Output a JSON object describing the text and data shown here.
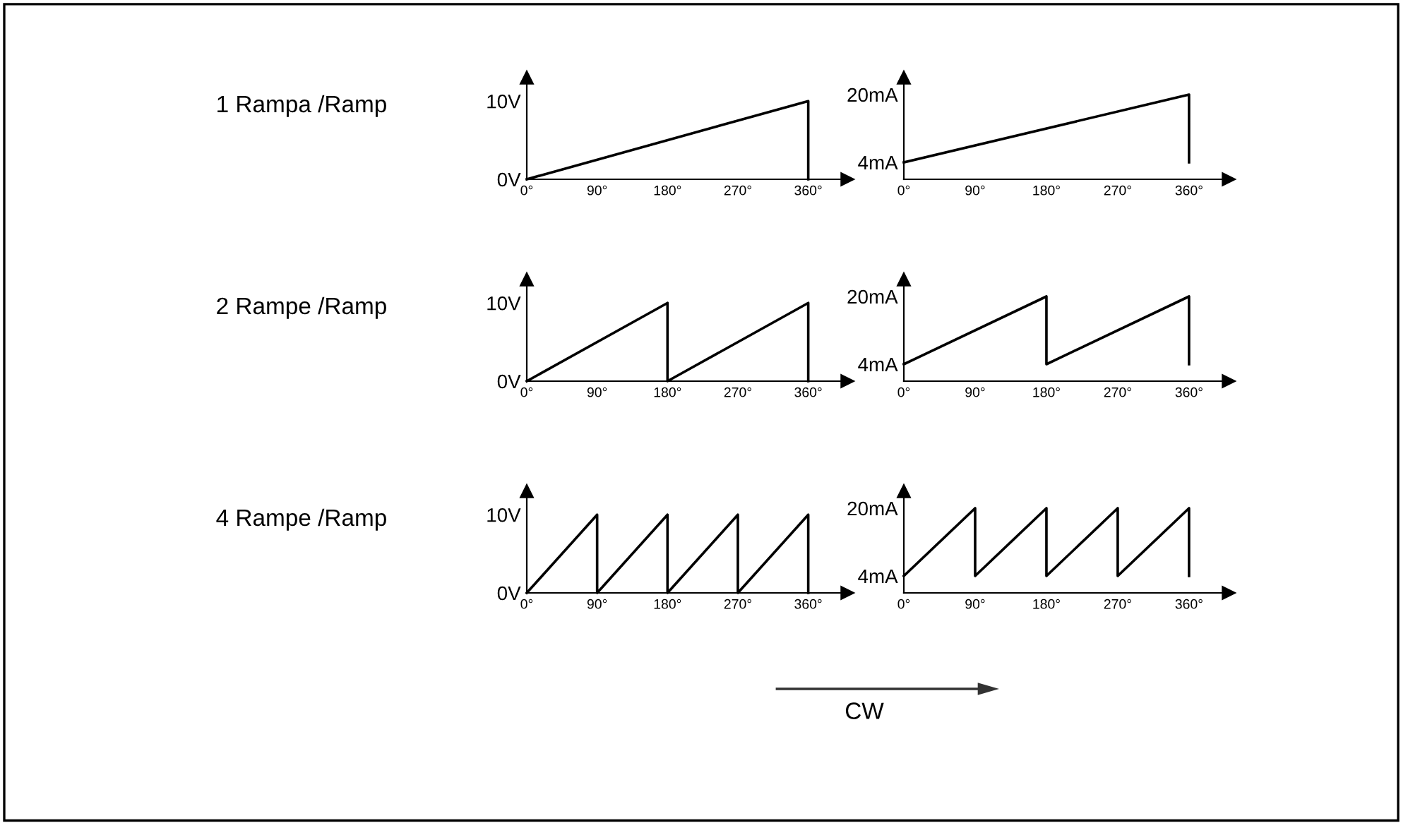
{
  "chart_data": [
    {
      "type": "line",
      "title": "1 Rampa /Ramp",
      "x": [
        0,
        360,
        360
      ],
      "series": [
        {
          "color": "#000000",
          "values": [
            0,
            10,
            0
          ]
        }
      ],
      "xlim": [
        0,
        410
      ],
      "ylim": [
        0,
        13
      ],
      "xticks": [
        {
          "value": 0,
          "label": "0°"
        },
        {
          "value": 90,
          "label": "90°"
        },
        {
          "value": 180,
          "label": "180°"
        },
        {
          "value": 270,
          "label": "270°"
        },
        {
          "value": 360,
          "label": "360°"
        }
      ],
      "yticks": [
        {
          "value": 0,
          "label": "0V"
        },
        {
          "value": 10,
          "label": "10V"
        }
      ],
      "grid": false,
      "legend": false
    },
    {
      "type": "line",
      "x": [
        0,
        360,
        360
      ],
      "series": [
        {
          "color": "#000000",
          "values": [
            4,
            20,
            4
          ]
        }
      ],
      "xlim": [
        0,
        410
      ],
      "ylim": [
        0,
        24
      ],
      "xticks": [
        {
          "value": 0,
          "label": "0°"
        },
        {
          "value": 90,
          "label": "90°"
        },
        {
          "value": 180,
          "label": "180°"
        },
        {
          "value": 270,
          "label": "270°"
        },
        {
          "value": 360,
          "label": "360°"
        }
      ],
      "yticks": [
        {
          "value": 4,
          "label": "4mA"
        },
        {
          "value": 20,
          "label": "20mA"
        }
      ],
      "grid": false,
      "legend": false
    },
    {
      "type": "line",
      "title": "2 Rampe /Ramp",
      "x": [
        0,
        180,
        180,
        360,
        360
      ],
      "series": [
        {
          "color": "#000000",
          "values": [
            0,
            10,
            0,
            10,
            0
          ]
        }
      ],
      "xlim": [
        0,
        410
      ],
      "ylim": [
        0,
        13
      ],
      "xticks": [
        {
          "value": 0,
          "label": "0°"
        },
        {
          "value": 90,
          "label": "90°"
        },
        {
          "value": 180,
          "label": "180°"
        },
        {
          "value": 270,
          "label": "270°"
        },
        {
          "value": 360,
          "label": "360°"
        }
      ],
      "yticks": [
        {
          "value": 0,
          "label": "0V"
        },
        {
          "value": 10,
          "label": "10V"
        }
      ],
      "grid": false,
      "legend": false
    },
    {
      "type": "line",
      "x": [
        0,
        180,
        180,
        360,
        360
      ],
      "series": [
        {
          "color": "#000000",
          "values": [
            4,
            20,
            4,
            20,
            4
          ]
        }
      ],
      "xlim": [
        0,
        410
      ],
      "ylim": [
        0,
        24
      ],
      "xticks": [
        {
          "value": 0,
          "label": "0°"
        },
        {
          "value": 90,
          "label": "90°"
        },
        {
          "value": 180,
          "label": "180°"
        },
        {
          "value": 270,
          "label": "270°"
        },
        {
          "value": 360,
          "label": "360°"
        }
      ],
      "yticks": [
        {
          "value": 4,
          "label": "4mA"
        },
        {
          "value": 20,
          "label": "20mA"
        }
      ],
      "grid": false,
      "legend": false
    },
    {
      "type": "line",
      "title": "4 Rampe /Ramp",
      "x": [
        0,
        90,
        90,
        180,
        180,
        270,
        270,
        360,
        360
      ],
      "series": [
        {
          "color": "#000000",
          "values": [
            0,
            10,
            0,
            10,
            0,
            10,
            0,
            10,
            0
          ]
        }
      ],
      "xlim": [
        0,
        410
      ],
      "ylim": [
        0,
        13
      ],
      "xticks": [
        {
          "value": 0,
          "label": "0°"
        },
        {
          "value": 90,
          "label": "90°"
        },
        {
          "value": 180,
          "label": "180°"
        },
        {
          "value": 270,
          "label": "270°"
        },
        {
          "value": 360,
          "label": "360°"
        }
      ],
      "yticks": [
        {
          "value": 0,
          "label": "0V"
        },
        {
          "value": 10,
          "label": "10V"
        }
      ],
      "grid": false,
      "legend": false
    },
    {
      "type": "line",
      "x": [
        0,
        90,
        90,
        180,
        180,
        270,
        270,
        360,
        360
      ],
      "series": [
        {
          "color": "#000000",
          "values": [
            4,
            20,
            4,
            20,
            4,
            20,
            4,
            20,
            4
          ]
        }
      ],
      "xlim": [
        0,
        410
      ],
      "ylim": [
        0,
        24
      ],
      "xticks": [
        {
          "value": 0,
          "label": "0°"
        },
        {
          "value": 90,
          "label": "90°"
        },
        {
          "value": 180,
          "label": "180°"
        },
        {
          "value": 270,
          "label": "270°"
        },
        {
          "value": 360,
          "label": "360°"
        }
      ],
      "yticks": [
        {
          "value": 4,
          "label": "4mA"
        },
        {
          "value": 20,
          "label": "20mA"
        }
      ],
      "grid": false,
      "legend": false,
      "annotations": [
        "CW"
      ]
    }
  ]
}
